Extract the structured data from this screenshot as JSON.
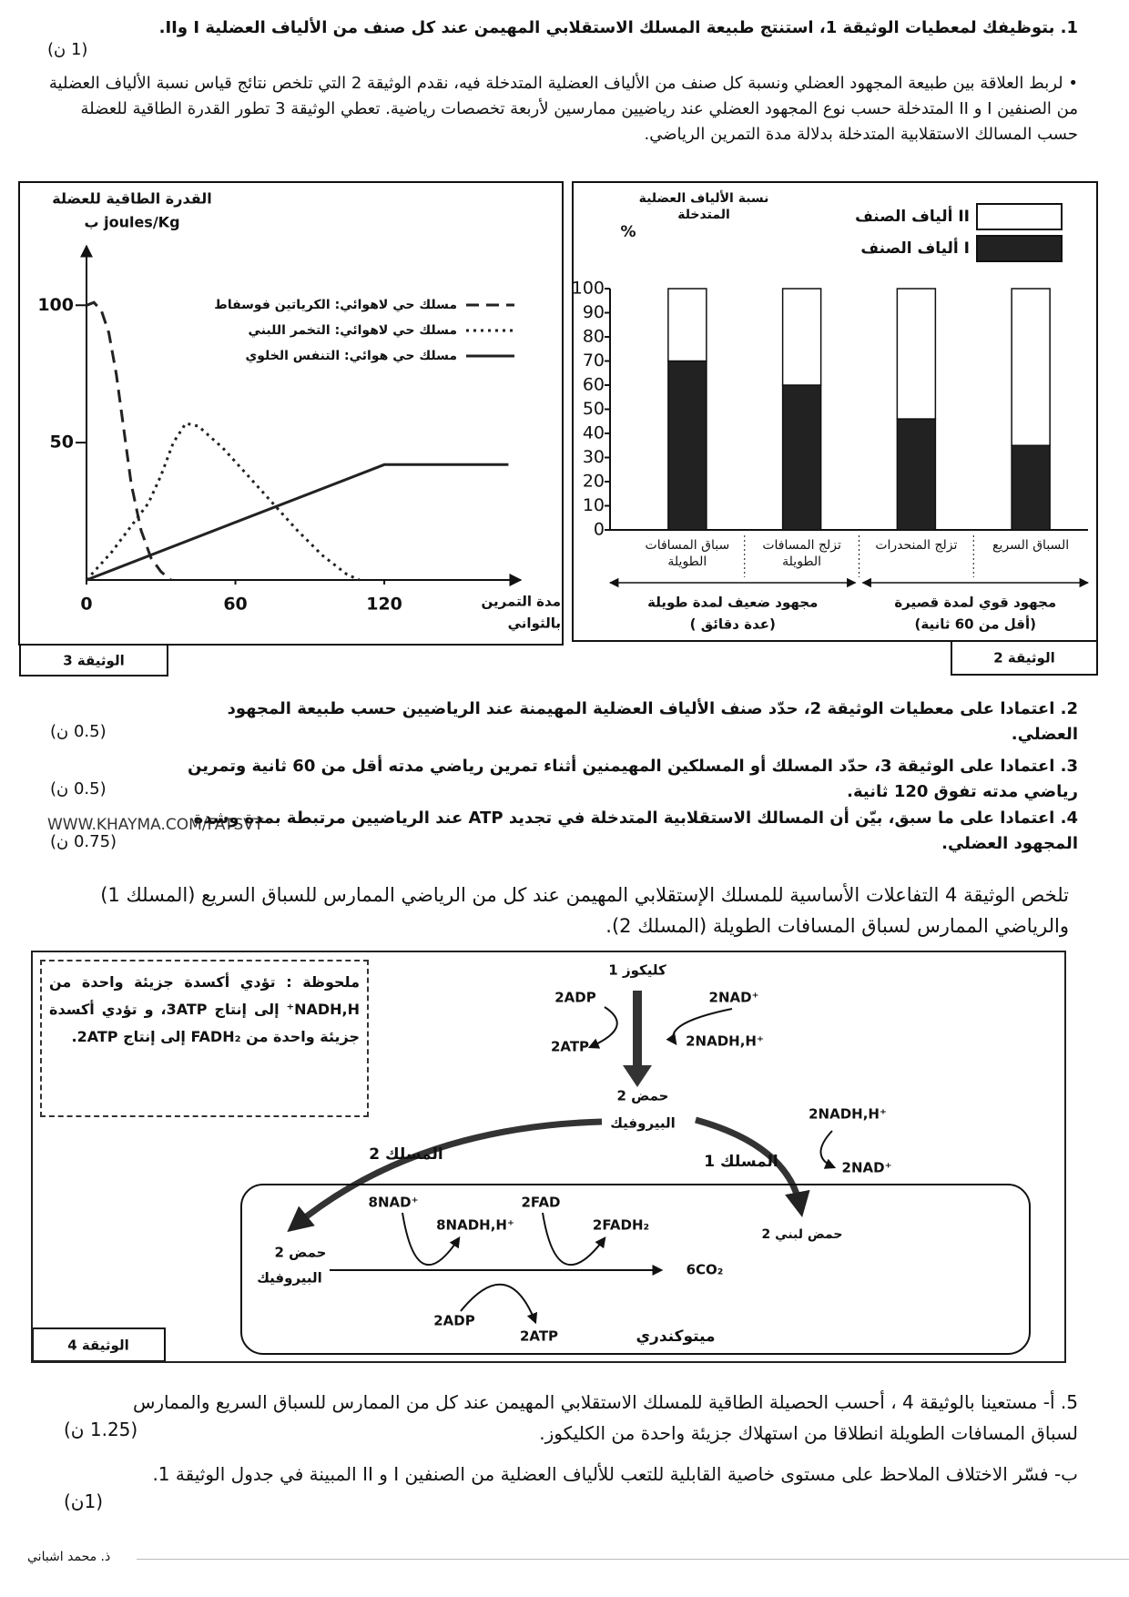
{
  "q1": {
    "text": "1. بتوظيفك لمعطيات الوثيقة 1، استنتج طبيعة المسلك الاستقلابي المهيمن عند كل صنف من الألياف العضلية I وII.",
    "points": "(1 ن)"
  },
  "intro": "• لربط العلاقة بين طبيعة المجهود العضلي ونسبة كل صنف من الألياف العضلية المتدخلة فيه، نقدم الوثيقة 2 التي تلخص نتائج قياس نسبة الألياف العضلية من الصنفين I و II المتدخلة حسب نوع المجهود العضلي عند رياضيين ممارسين لأربعة تخصصات رياضية. تعطي الوثيقة 3 تطور القدرة الطاقية للعضلة حسب المسالك الاستقلابية المتدخلة بدلالة مدة التمرين الرياضي.",
  "chart_data": [
    {
      "type": "line",
      "y_label": [
        "القدرة الطاقية للعضلة",
        "ب joules/Kg"
      ],
      "x_label": [
        "مدة التمرين",
        "بالثواني"
      ],
      "xlim": [
        0,
        175
      ],
      "ylim": [
        0,
        115
      ],
      "xticks": [
        0,
        60,
        120
      ],
      "yticks": [
        50,
        100
      ],
      "series": [
        {
          "name": "مسلك حي لاهوائي: الكرياتين فوسفاط",
          "color": "#222222",
          "dash": "dashed",
          "x": [
            0,
            3,
            6,
            9,
            12,
            15,
            18,
            22,
            26,
            30,
            34
          ],
          "values": [
            100,
            101,
            98,
            90,
            75,
            55,
            35,
            18,
            8,
            3,
            0
          ]
        },
        {
          "name": "مسلك حي لاهوائي: التخمر اللبني",
          "color": "#222222",
          "dash": "dotted",
          "x": [
            0,
            5,
            10,
            15,
            20,
            25,
            30,
            35,
            40,
            45,
            55,
            65,
            75,
            85,
            95,
            105,
            110
          ],
          "values": [
            0,
            5,
            10,
            16,
            22,
            28,
            38,
            50,
            57,
            56,
            48,
            38,
            28,
            18,
            9,
            2,
            0
          ]
        },
        {
          "name": "مسلك حي هوائي: التنفس الخلوي",
          "color": "#222222",
          "dash": "solid",
          "x": [
            0,
            120,
            170
          ],
          "values": [
            0,
            42,
            42
          ]
        }
      ],
      "doc_label": "الوثيقة 3"
    },
    {
      "type": "bar",
      "stacked": true,
      "y_label": "نسبة الألياف العضلية المتدخلة",
      "y_unit": "%",
      "categories": [
        "سباق المسافات الطويلة",
        "تزلج المسافات الطويلة",
        "تزلج المنحدرات",
        "السباق السريع"
      ],
      "groups": [
        {
          "title": "مجهود ضعيف لمدة طويلة",
          "note": "( عدة دقائق)"
        },
        {
          "title": "مجهود قوي لمدة قصيرة",
          "note": "(أقل من 60 ثانية)"
        }
      ],
      "series": [
        {
          "name": "ألياف الصنف I",
          "color": "#222222",
          "values": [
            70,
            60,
            46,
            35
          ]
        },
        {
          "name": "ألياف الصنف II",
          "color": "#ffffff",
          "values": [
            30,
            40,
            54,
            65
          ]
        }
      ],
      "ylim": [
        0,
        100
      ],
      "yticks": [
        0,
        10,
        20,
        30,
        40,
        50,
        60,
        70,
        80,
        90,
        100
      ],
      "doc_label": "الوثيقة 2"
    }
  ],
  "questions": [
    {
      "text": "2. اعتمادا على معطيات الوثيقة 2، حدّد صنف الألياف العضلية المهيمنة عند الرياضيين حسب طبيعة المجهود العضلي.",
      "points": "(0.5 ن)"
    },
    {
      "text": "3. اعتمادا على الوثيقة 3، حدّد المسلك أو المسلكين المهيمنين أثناء تمرين رياضي مدته أقل من 60 ثانية وتمرين رياضي مدته تفوق 120 ثانية.",
      "points": "(0.5 ن)"
    },
    {
      "text": "4. اعتمادا على ما سبق، بيّن أن المسالك الاستقلابية المتدخلة في تجديد ATP عند الرياضيين مرتبطة بمدة وشدة المجهود العضلي.",
      "points": "(0.75 ن)"
    }
  ],
  "watermark": "WWW.KHAYMA.COM/FATSVT",
  "intro_doc4": "تلخص الوثيقة 4 التفاعلات الأساسية للمسلك الإستقلابي المهيمن عند كل من الرياضي الممارس للسباق السريع (المسلك 1) والرياضي الممارس لسباق المسافات الطويلة (المسلك 2).",
  "diagram": {
    "note": "ملحوظة : تؤدي أكسدة جزيئة واحدة من NADH,H⁺ إلى إنتاج 3ATP، و تؤدي أكسدة جزيئة واحدة من FADH₂ إلى إنتاج 2ATP.",
    "glucose": "1 كليكوز",
    "adp_1": "2ADP",
    "nad_1": "2NAD⁺",
    "atp_1": "2ATP",
    "nadh_1": "2NADH,H⁺",
    "pyruvate": [
      "2 حمض",
      "البيروفيك"
    ],
    "pathway_2": "المسلك 2",
    "pathway_1": "المسلك 1",
    "nadh_2": "2NADH,H⁺",
    "nad_2": "2NAD⁺",
    "lactic": "2 حمض لبني",
    "mito_pyruvate": [
      "2 حمض",
      "البيروفيك"
    ],
    "nad_8": "8NAD⁺",
    "nadh_8": "8NADH,H⁺",
    "fad": "2FAD",
    "fadh": "2FADH₂",
    "co2": "6CO₂",
    "adp_2": "2ADP",
    "atp_2": "2ATP",
    "mito": "ميتوكندري",
    "doc_label": "الوثيقة 4"
  },
  "q5": {
    "a": {
      "text": "5. أ- مستعينا بالوثيقة 4 ، أحسب الحصيلة الطاقية للمسلك الاستقلابي المهيمن عند كل من الممارس للسباق السريع والممارس لسباق المسافات الطويلة انطلاقا من استهلاك جزيئة واحدة من الكليكوز.",
      "points": "(1.25 ن)"
    },
    "b": {
      "text": "ب- فسّر الاختلاف الملاحظ على مستوى خاصية القابلية للتعب للألياف العضلية من الصنفين I و II المبينة في جدول الوثيقة 1.",
      "points": "(1ن)"
    }
  },
  "footer": "ذ. محمد اشباني"
}
